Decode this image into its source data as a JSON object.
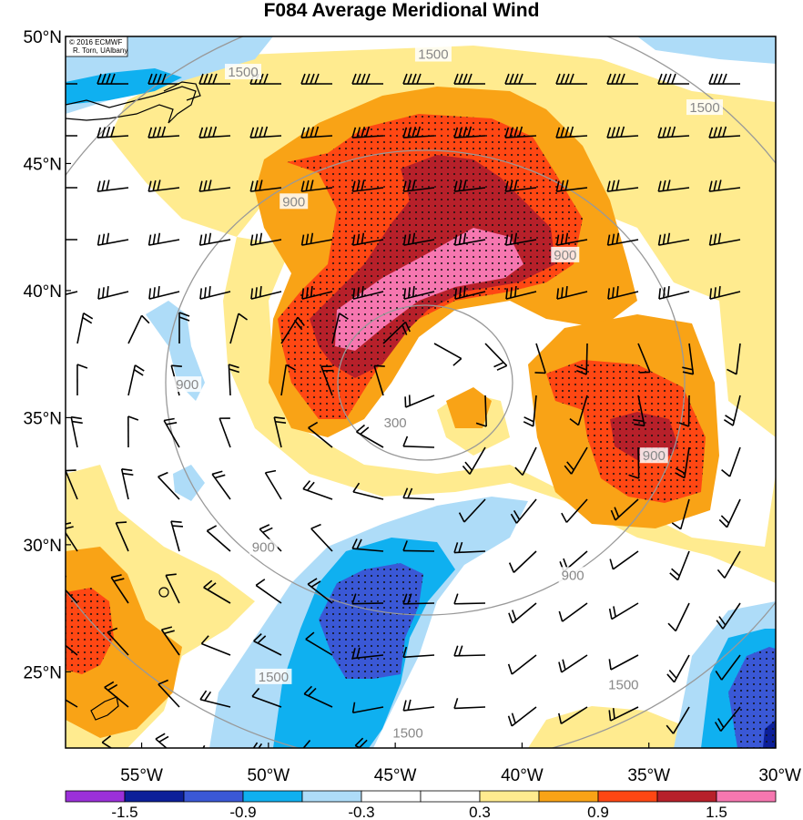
{
  "title": "F084 Average Meridional Wind",
  "credit": {
    "line1": "© 2016 ECMWF",
    "line2": "R. Torn, UAlbany"
  },
  "map": {
    "lon_range": [
      -58,
      -30
    ],
    "lat_range": [
      22,
      50
    ],
    "lat_ticks": [
      {
        "value": 50,
        "label": "50°N"
      },
      {
        "value": 45,
        "label": "45°N"
      },
      {
        "value": 40,
        "label": "40°N"
      },
      {
        "value": 35,
        "label": "35°N"
      },
      {
        "value": 30,
        "label": "30°N"
      },
      {
        "value": 25,
        "label": "25°N"
      }
    ],
    "lon_ticks": [
      {
        "value": -55,
        "label": "55°W"
      },
      {
        "value": -50,
        "label": "50°W"
      },
      {
        "value": -45,
        "label": "45°W"
      },
      {
        "value": -40,
        "label": "40°W"
      },
      {
        "value": -35,
        "label": "35°W"
      },
      {
        "value": -30,
        "label": "30°W"
      }
    ],
    "distance_rings": [
      {
        "label": "300",
        "label_lon": -45,
        "label_lat": 34.8
      },
      {
        "label": "900",
        "label_lon": -49,
        "label_lat": 43.5
      },
      {
        "label": "900",
        "label_lon": -53.2,
        "label_lat": 36.3
      },
      {
        "label": "900",
        "label_lon": -34.8,
        "label_lat": 33.5
      },
      {
        "label": "900",
        "label_lon": -38,
        "label_lat": 28.8
      },
      {
        "label": "900",
        "label_lon": -50.2,
        "label_lat": 29.9
      },
      {
        "label": "900",
        "label_lon": -38.3,
        "label_lat": 41.4
      },
      {
        "label": "1500",
        "label_lon": -43.5,
        "label_lat": 49.3
      },
      {
        "label": "1500",
        "label_lon": -51,
        "label_lat": 48.6
      },
      {
        "label": "1500",
        "label_lon": -32.8,
        "label_lat": 47.2
      },
      {
        "label": "1500",
        "label_lon": -49.8,
        "label_lat": 24.8
      },
      {
        "label": "1500",
        "label_lon": -44.5,
        "label_lat": 22.6
      },
      {
        "label": "1500",
        "label_lon": -36,
        "label_lat": 24.5
      }
    ],
    "colorbar": {
      "colors": [
        "#9b30d9",
        "#0c1f99",
        "#3a58d6",
        "#0fb0f0",
        "#aedcf8",
        "#ffffff",
        "#ffffff",
        "#ffeb8f",
        "#f9a316",
        "#ff4713",
        "#b7202a",
        "#f677b0"
      ],
      "labels": [
        "-1.5",
        "-0.9",
        "-0.3",
        "0.3",
        "0.9",
        "1.5"
      ]
    }
  }
}
